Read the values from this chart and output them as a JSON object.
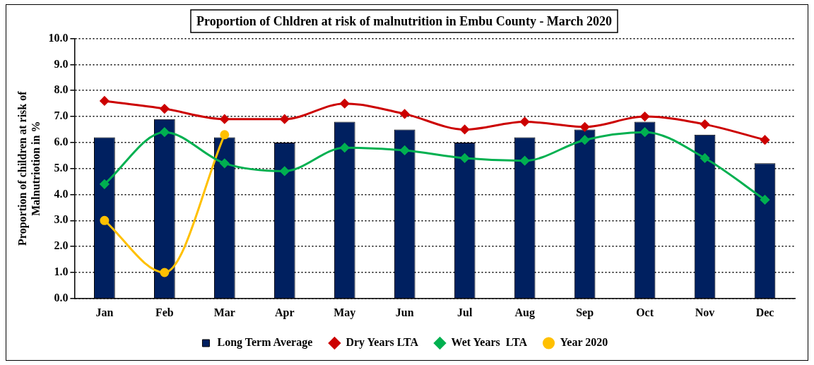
{
  "chart_data": {
    "type": "bar",
    "title": "Proportion of Chldren at risk of malnutrition in Embu County - March 2020",
    "ylabel": "Proportion of children at risk of Malnutriotion in %",
    "categories": [
      "Jan",
      "Feb",
      "Mar",
      "Apr",
      "May",
      "Jun",
      "Jul",
      "Aug",
      "Sep",
      "Oct",
      "Nov",
      "Dec"
    ],
    "series": [
      {
        "name": "Long Term Average",
        "color": "#002060",
        "values": [
          6.2,
          6.9,
          6.2,
          6.0,
          6.8,
          6.5,
          6.0,
          6.2,
          6.5,
          6.8,
          6.3,
          5.2
        ]
      },
      {
        "name": "Dry Years LTA",
        "type": "line",
        "marker": "diamond",
        "color": "#cc0000",
        "values": [
          7.6,
          7.3,
          6.9,
          6.9,
          7.5,
          7.1,
          6.5,
          6.8,
          6.6,
          7.0,
          6.7,
          6.1
        ]
      },
      {
        "name": "Wet Years  LTA",
        "type": "line",
        "marker": "diamond",
        "color": "#00b050",
        "values": [
          4.4,
          6.4,
          5.2,
          4.9,
          5.8,
          5.7,
          5.4,
          5.3,
          6.1,
          6.4,
          5.4,
          3.8
        ]
      },
      {
        "name": "Year 2020",
        "type": "line",
        "marker": "circle",
        "color": "#ffc000",
        "values": [
          3.0,
          1.0,
          6.3,
          null,
          null,
          null,
          null,
          null,
          null,
          null,
          null,
          null
        ]
      }
    ],
    "ylim": [
      0,
      10
    ],
    "yticks": [
      {
        "value": 0,
        "label": "0.0"
      },
      {
        "value": 1,
        "label": "1.0"
      },
      {
        "value": 2,
        "label": "2.0"
      },
      {
        "value": 3,
        "label": "3.0"
      },
      {
        "value": 4,
        "label": "4.0"
      },
      {
        "value": 5,
        "label": "5.0"
      },
      {
        "value": 6,
        "label": "6.0"
      },
      {
        "value": 7,
        "label": "7.0"
      },
      {
        "value": 8,
        "label": "8.0"
      },
      {
        "value": 9,
        "label": "9.0"
      },
      {
        "value": 10,
        "label": "10.0"
      }
    ],
    "grid": "y",
    "legend": "bottom",
    "line_style": "solid"
  }
}
